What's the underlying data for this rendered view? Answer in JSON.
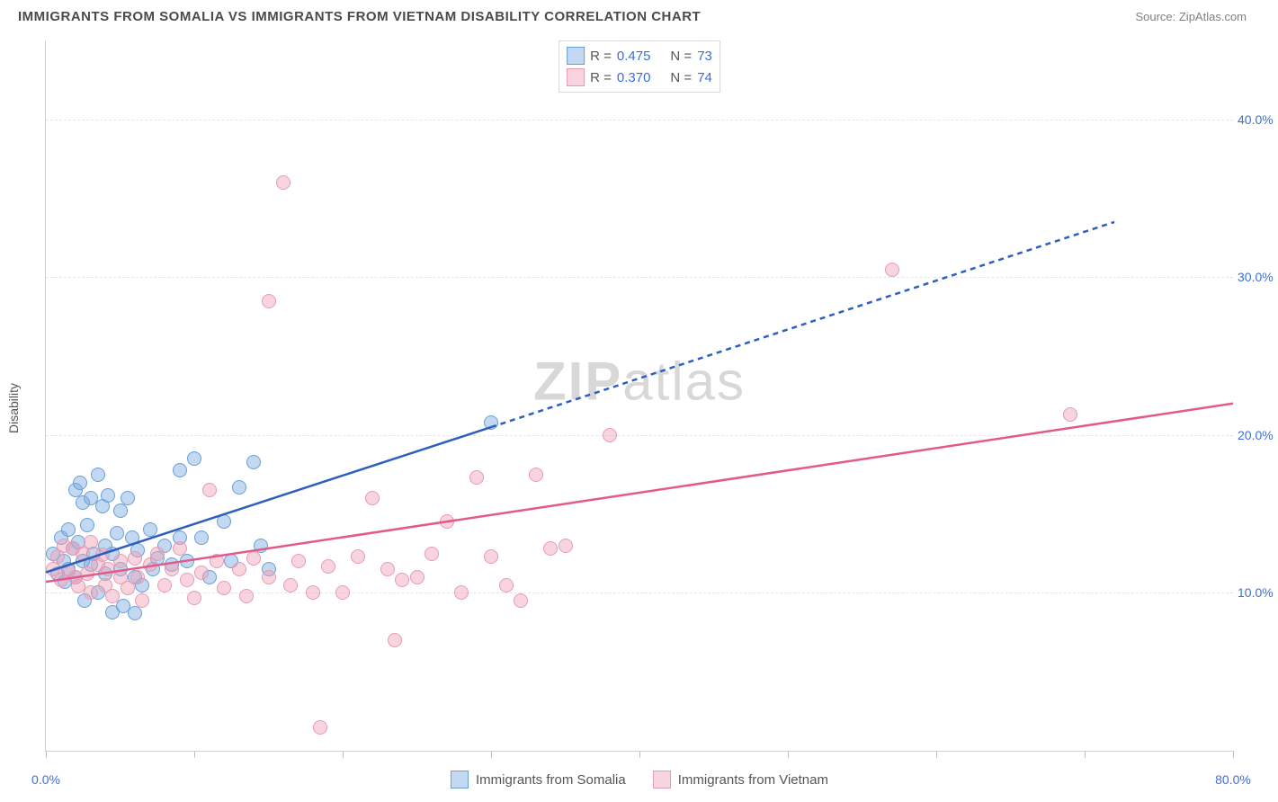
{
  "title": "IMMIGRANTS FROM SOMALIA VS IMMIGRANTS FROM VIETNAM DISABILITY CORRELATION CHART",
  "source": "Source: ZipAtlas.com",
  "watermark_a": "ZIP",
  "watermark_b": "atlas",
  "y_axis_label": "Disability",
  "colors": {
    "blue_fill": "rgba(120,170,225,0.45)",
    "blue_stroke": "#6a9ed4",
    "pink_fill": "rgba(240,160,185,0.45)",
    "pink_stroke": "#e89ab2",
    "blue_line": "#2e5fbf",
    "pink_line": "#e25a8a",
    "axis_text": "#3b6fd6",
    "grid": "#e5e5e5"
  },
  "chart": {
    "type": "scatter",
    "xlim": [
      0,
      80
    ],
    "ylim": [
      0,
      45
    ],
    "y_ticks": [
      10,
      20,
      30,
      40
    ],
    "y_tick_labels": [
      "10.0%",
      "20.0%",
      "30.0%",
      "40.0%"
    ],
    "x_ticks": [
      0,
      10,
      20,
      30,
      40,
      50,
      60,
      70,
      80
    ],
    "x_tick_labels": {
      "0": "0.0%",
      "80": "80.0%"
    },
    "marker_radius": 7
  },
  "series": [
    {
      "name": "Immigrants from Somalia",
      "color_key": "blue",
      "r_value": "0.475",
      "n_value": "73",
      "trend": {
        "x1": 0,
        "y1": 11.3,
        "x2": 30,
        "y2": 20.5,
        "dash_to_x": 72,
        "dash_to_y": 33.5
      },
      "points": [
        [
          0.5,
          12.5
        ],
        [
          0.8,
          11.2
        ],
        [
          1.0,
          13.5
        ],
        [
          1.2,
          12.0
        ],
        [
          1.3,
          10.7
        ],
        [
          1.5,
          14.0
        ],
        [
          1.5,
          11.5
        ],
        [
          1.8,
          12.8
        ],
        [
          2.0,
          16.5
        ],
        [
          2.0,
          11.0
        ],
        [
          2.2,
          13.2
        ],
        [
          2.3,
          17.0
        ],
        [
          2.5,
          15.7
        ],
        [
          2.5,
          12.0
        ],
        [
          2.6,
          9.5
        ],
        [
          2.8,
          14.3
        ],
        [
          3.0,
          16.0
        ],
        [
          3.0,
          11.8
        ],
        [
          3.2,
          12.5
        ],
        [
          3.5,
          17.5
        ],
        [
          3.5,
          10.0
        ],
        [
          3.8,
          15.5
        ],
        [
          4.0,
          13.0
        ],
        [
          4.0,
          11.2
        ],
        [
          4.2,
          16.2
        ],
        [
          4.5,
          12.5
        ],
        [
          4.5,
          8.8
        ],
        [
          4.8,
          13.8
        ],
        [
          5.0,
          15.2
        ],
        [
          5.0,
          11.5
        ],
        [
          5.2,
          9.2
        ],
        [
          5.5,
          16.0
        ],
        [
          5.8,
          13.5
        ],
        [
          6.0,
          11.0
        ],
        [
          6.0,
          8.7
        ],
        [
          6.2,
          12.7
        ],
        [
          6.5,
          10.5
        ],
        [
          7.0,
          14.0
        ],
        [
          7.2,
          11.5
        ],
        [
          7.5,
          12.2
        ],
        [
          8.0,
          13.0
        ],
        [
          8.5,
          11.8
        ],
        [
          9.0,
          13.5
        ],
        [
          9.0,
          17.8
        ],
        [
          9.5,
          12.0
        ],
        [
          10.0,
          18.5
        ],
        [
          10.5,
          13.5
        ],
        [
          11.0,
          11.0
        ],
        [
          12.0,
          14.5
        ],
        [
          12.5,
          12.0
        ],
        [
          13.0,
          16.7
        ],
        [
          14.0,
          18.3
        ],
        [
          14.5,
          13.0
        ],
        [
          15.0,
          11.5
        ],
        [
          30.0,
          20.8
        ]
      ]
    },
    {
      "name": "Immigrants from Vietnam",
      "color_key": "pink",
      "r_value": "0.370",
      "n_value": "74",
      "trend": {
        "x1": 0,
        "y1": 10.7,
        "x2": 80,
        "y2": 22.0
      },
      "points": [
        [
          0.5,
          11.5
        ],
        [
          0.8,
          12.3
        ],
        [
          1.0,
          10.8
        ],
        [
          1.2,
          13.0
        ],
        [
          1.5,
          11.4
        ],
        [
          1.8,
          12.8
        ],
        [
          2.0,
          11.0
        ],
        [
          2.2,
          10.4
        ],
        [
          2.5,
          12.5
        ],
        [
          2.8,
          11.2
        ],
        [
          3.0,
          13.2
        ],
        [
          3.0,
          10.0
        ],
        [
          3.5,
          11.8
        ],
        [
          3.8,
          12.4
        ],
        [
          4.0,
          10.5
        ],
        [
          4.2,
          11.5
        ],
        [
          4.5,
          9.8
        ],
        [
          5.0,
          12.0
        ],
        [
          5.0,
          11.0
        ],
        [
          5.5,
          10.3
        ],
        [
          6.0,
          12.2
        ],
        [
          6.2,
          11.0
        ],
        [
          6.5,
          9.5
        ],
        [
          7.0,
          11.8
        ],
        [
          7.5,
          12.5
        ],
        [
          8.0,
          10.5
        ],
        [
          8.5,
          11.5
        ],
        [
          9.0,
          12.8
        ],
        [
          9.5,
          10.8
        ],
        [
          10.0,
          9.7
        ],
        [
          10.5,
          11.3
        ],
        [
          11.0,
          16.5
        ],
        [
          11.5,
          12.0
        ],
        [
          12.0,
          10.3
        ],
        [
          13.0,
          11.5
        ],
        [
          13.5,
          9.8
        ],
        [
          14.0,
          12.2
        ],
        [
          15.0,
          11.0
        ],
        [
          15.0,
          28.5
        ],
        [
          16.0,
          36.0
        ],
        [
          16.5,
          10.5
        ],
        [
          17.0,
          12.0
        ],
        [
          18.0,
          10.0
        ],
        [
          18.5,
          1.5
        ],
        [
          19.0,
          11.7
        ],
        [
          20.0,
          10.0
        ],
        [
          21.0,
          12.3
        ],
        [
          22.0,
          16.0
        ],
        [
          23.0,
          11.5
        ],
        [
          23.5,
          7.0
        ],
        [
          24.0,
          10.8
        ],
        [
          25.0,
          11.0
        ],
        [
          26.0,
          12.5
        ],
        [
          27.0,
          14.5
        ],
        [
          28.0,
          10.0
        ],
        [
          29.0,
          17.3
        ],
        [
          30.0,
          12.3
        ],
        [
          31.0,
          10.5
        ],
        [
          32.0,
          9.5
        ],
        [
          33.0,
          17.5
        ],
        [
          34.0,
          12.8
        ],
        [
          35.0,
          13.0
        ],
        [
          38.0,
          20.0
        ],
        [
          57.0,
          30.5
        ],
        [
          69.0,
          21.3
        ]
      ]
    }
  ],
  "legend_top": {
    "r_label": "R =",
    "n_label": "N ="
  }
}
